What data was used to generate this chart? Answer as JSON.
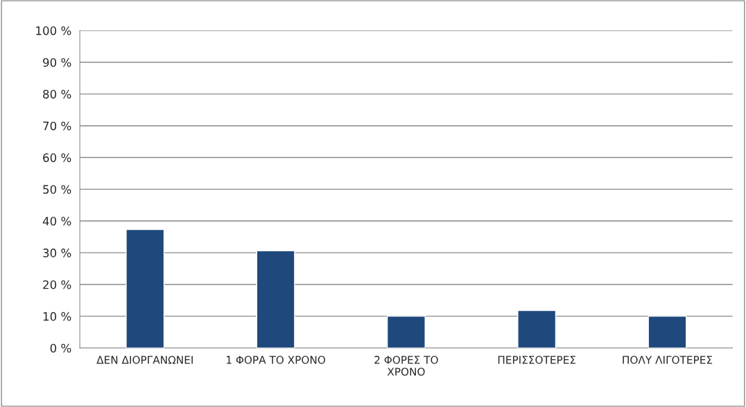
{
  "chart_data": {
    "type": "bar",
    "categories": [
      "ΔΕΝ ΔΙΟΡΓΑΝΩΝΕΙ",
      "1 ΦΟΡΑ ΤΟ ΧΡΟΝΟ",
      "2 ΦΟΡΕΣ ΤΟ\nΧΡΟΝΟ",
      "ΠΕΡΙΣΣΟΤΕΡΕΣ",
      "ΠΟΛΥ ΛΙΓΟΤΕΡΕΣ"
    ],
    "values": [
      37.3,
      30.6,
      10,
      11.8,
      10
    ],
    "color": "#1f497d",
    "ylim": [
      0,
      100
    ],
    "yticks": [
      {
        "value": 0,
        "label": "0 %"
      },
      {
        "value": 10,
        "label": "10 %"
      },
      {
        "value": 20,
        "label": "20 %"
      },
      {
        "value": 30,
        "label": "30 %"
      },
      {
        "value": 40,
        "label": "40 %"
      },
      {
        "value": 50,
        "label": "50 %"
      },
      {
        "value": 60,
        "label": "60 %"
      },
      {
        "value": 70,
        "label": "70 %"
      },
      {
        "value": 80,
        "label": "80 %"
      },
      {
        "value": 90,
        "label": "90 %"
      },
      {
        "value": 100,
        "label": "100 %"
      }
    ],
    "grid": "y",
    "legend": false
  }
}
